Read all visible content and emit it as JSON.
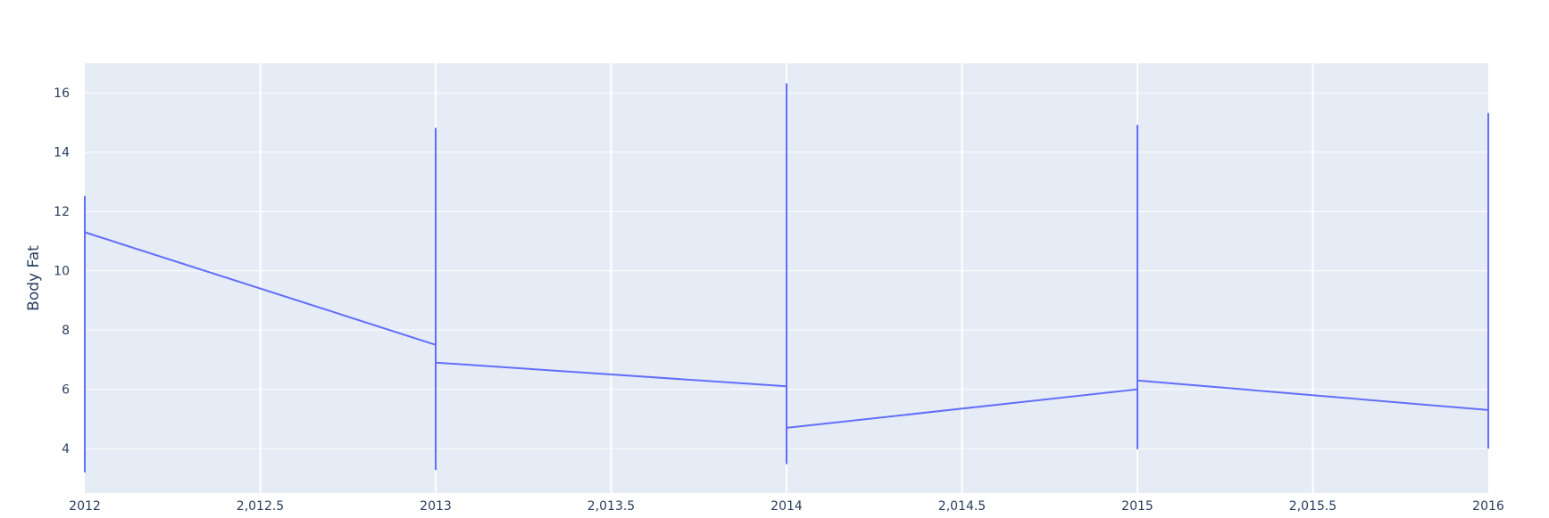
{
  "chart_data": {
    "type": "line",
    "title": "",
    "xlabel": "",
    "ylabel": "Body Fat",
    "xlim": [
      2012,
      2016
    ],
    "ylim": [
      2.5,
      17
    ],
    "x_ticks": [
      {
        "value": 2012,
        "label": "2012"
      },
      {
        "value": 2012.5,
        "label": "2,012.5"
      },
      {
        "value": 2013,
        "label": "2013"
      },
      {
        "value": 2013.5,
        "label": "2,013.5"
      },
      {
        "value": 2014,
        "label": "2014"
      },
      {
        "value": 2014.5,
        "label": "2,014.5"
      },
      {
        "value": 2015,
        "label": "2015"
      },
      {
        "value": 2015.5,
        "label": "2,015.5"
      },
      {
        "value": 2016,
        "label": "2016"
      }
    ],
    "y_ticks": [
      {
        "value": 4,
        "label": "4"
      },
      {
        "value": 6,
        "label": "6"
      },
      {
        "value": 8,
        "label": "8"
      },
      {
        "value": 10,
        "label": "10"
      },
      {
        "value": 12,
        "label": "12"
      },
      {
        "value": 14,
        "label": "14"
      },
      {
        "value": 16,
        "label": "16"
      }
    ],
    "grid": true,
    "legend": false,
    "series": [
      {
        "color": "#636efa",
        "x": [
          2012,
          2012,
          2012,
          2013,
          2013,
          2013,
          2013,
          2014,
          2014,
          2014,
          2014,
          2015,
          2015,
          2015,
          2015,
          2016,
          2016,
          2016
        ],
        "y": [
          3.2,
          12.5,
          11.3,
          7.5,
          14.8,
          3.3,
          6.9,
          6.1,
          16.3,
          3.5,
          4.7,
          6.0,
          14.9,
          4.0,
          6.3,
          5.3,
          15.3,
          4.0
        ]
      }
    ],
    "style": {
      "plot_bg": "#e5ecf6",
      "grid_color": "#ffffff",
      "text_color": "#2a3f5f"
    }
  }
}
